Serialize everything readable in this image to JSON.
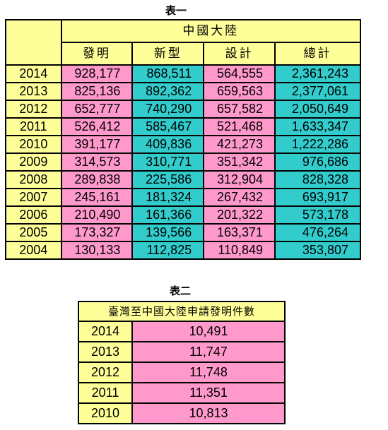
{
  "table1": {
    "caption": "表一",
    "region": "中國大陸",
    "headers": [
      "發明",
      "新型",
      "設計",
      "總計"
    ],
    "rows": [
      [
        "2014",
        "928,177",
        "868,511",
        "564,555",
        "2,361,243"
      ],
      [
        "2013",
        "825,136",
        "892,362",
        "659,563",
        "2,377,061"
      ],
      [
        "2012",
        "652,777",
        "740,290",
        "657,582",
        "2,050,649"
      ],
      [
        "2011",
        "526,412",
        "585,467",
        "521,468",
        "1,633,347"
      ],
      [
        "2010",
        "391,177",
        "409,836",
        "421,273",
        "1,222,286"
      ],
      [
        "2009",
        "314,573",
        "310,771",
        "351,342",
        "976,686"
      ],
      [
        "2008",
        "289,838",
        "225,586",
        "312,904",
        "828,328"
      ],
      [
        "2007",
        "245,161",
        "181,324",
        "267,432",
        "693,917"
      ],
      [
        "2006",
        "210,490",
        "161,366",
        "201,322",
        "573,178"
      ],
      [
        "2005",
        "173,327",
        "139,566",
        "163,371",
        "476,264"
      ],
      [
        "2004",
        "130,133",
        "112,825",
        "110,849",
        "353,807"
      ]
    ]
  },
  "table2": {
    "caption": "表二",
    "title": "臺灣至中國大陸申請發明件數",
    "rows": [
      [
        "2014",
        "10,491"
      ],
      [
        "2013",
        "11,747"
      ],
      [
        "2012",
        "11,748"
      ],
      [
        "2011",
        "11,351"
      ],
      [
        "2010",
        "10,813"
      ]
    ]
  },
  "colors": {
    "header": "#ffff99",
    "pink": "#ff99cc",
    "teal": "#33cccc"
  }
}
